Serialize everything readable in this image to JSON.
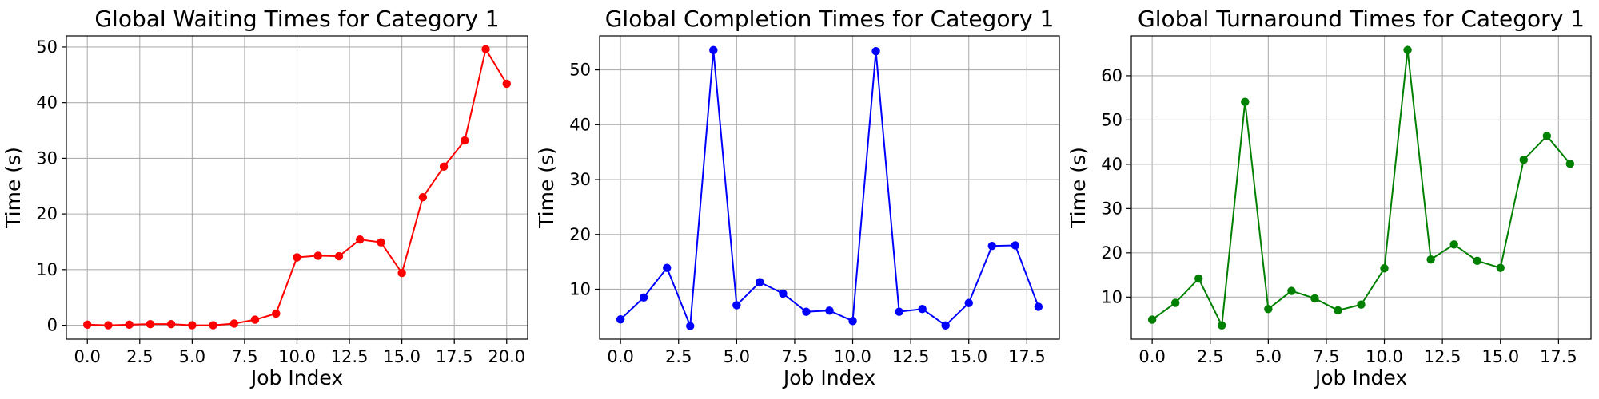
{
  "chart_data": [
    {
      "type": "line",
      "title": "Global Waiting Times for Category 1",
      "xlabel": "Job Index",
      "ylabel": "Time (s)",
      "color": "#ff0000",
      "xlim": [
        -1.0,
        21.0
      ],
      "ylim": [
        -2.5,
        52.0
      ],
      "xticks": [
        0.0,
        2.5,
        5.0,
        7.5,
        10.0,
        12.5,
        15.0,
        17.5,
        20.0
      ],
      "xtick_labels": [
        "0.0",
        "2.5",
        "5.0",
        "7.5",
        "10.0",
        "12.5",
        "15.0",
        "17.5",
        "20.0"
      ],
      "yticks": [
        0,
        10,
        20,
        30,
        40,
        50
      ],
      "ytick_labels": [
        "0",
        "10",
        "20",
        "30",
        "40",
        "50"
      ],
      "grid": true,
      "series": [
        {
          "x": [
            0,
            1,
            2,
            3,
            4,
            5,
            6,
            7,
            8,
            9,
            10,
            11,
            12,
            13,
            14,
            15,
            16,
            17,
            18,
            19,
            20
          ],
          "values": [
            0.1,
            0.0,
            0.1,
            0.2,
            0.2,
            0.0,
            0.0,
            0.3,
            1.0,
            2.1,
            12.2,
            12.5,
            12.4,
            15.4,
            14.9,
            9.4,
            23.0,
            28.5,
            33.2,
            49.6,
            43.4
          ]
        }
      ]
    },
    {
      "type": "line",
      "title": "Global Completion Times for Category 1",
      "xlabel": "Job Index",
      "ylabel": "Time (s)",
      "color": "#0000ff",
      "xlim": [
        -0.9,
        18.9
      ],
      "ylim": [
        0.9,
        56.2
      ],
      "xticks": [
        0.0,
        2.5,
        5.0,
        7.5,
        10.0,
        12.5,
        15.0,
        17.5
      ],
      "xtick_labels": [
        "0.0",
        "2.5",
        "5.0",
        "7.5",
        "10.0",
        "12.5",
        "15.0",
        "17.5"
      ],
      "yticks": [
        10,
        20,
        30,
        40,
        50
      ],
      "ytick_labels": [
        "10",
        "20",
        "30",
        "40",
        "50"
      ],
      "grid": true,
      "series": [
        {
          "x": [
            0,
            1,
            2,
            3,
            4,
            5,
            6,
            7,
            8,
            9,
            10,
            11,
            12,
            13,
            14,
            15,
            16,
            17,
            18
          ],
          "values": [
            4.5,
            8.5,
            13.9,
            3.3,
            53.6,
            7.1,
            11.3,
            9.2,
            5.9,
            6.1,
            4.2,
            53.4,
            5.9,
            6.4,
            3.4,
            7.5,
            17.9,
            18.0,
            6.8
          ]
        }
      ]
    },
    {
      "type": "line",
      "title": "Global Turnaround Times for Category 1",
      "xlabel": "Job Index",
      "ylabel": "Time (s)",
      "color": "#008000",
      "xlim": [
        -0.9,
        18.9
      ],
      "ylim": [
        0.5,
        69.0
      ],
      "xticks": [
        0.0,
        2.5,
        5.0,
        7.5,
        10.0,
        12.5,
        15.0,
        17.5
      ],
      "xtick_labels": [
        "0.0",
        "2.5",
        "5.0",
        "7.5",
        "10.0",
        "12.5",
        "15.0",
        "17.5"
      ],
      "yticks": [
        10,
        20,
        30,
        40,
        50,
        60
      ],
      "ytick_labels": [
        "10",
        "20",
        "30",
        "40",
        "50",
        "60"
      ],
      "grid": true,
      "series": [
        {
          "x": [
            0,
            1,
            2,
            3,
            4,
            5,
            6,
            7,
            8,
            9,
            10,
            11,
            12,
            13,
            14,
            15,
            16,
            17,
            18
          ],
          "values": [
            4.9,
            8.7,
            14.2,
            3.6,
            54.1,
            7.3,
            11.4,
            9.7,
            7.0,
            8.3,
            16.5,
            65.8,
            18.5,
            21.9,
            18.2,
            16.6,
            41.0,
            46.4,
            40.1
          ]
        }
      ]
    }
  ]
}
